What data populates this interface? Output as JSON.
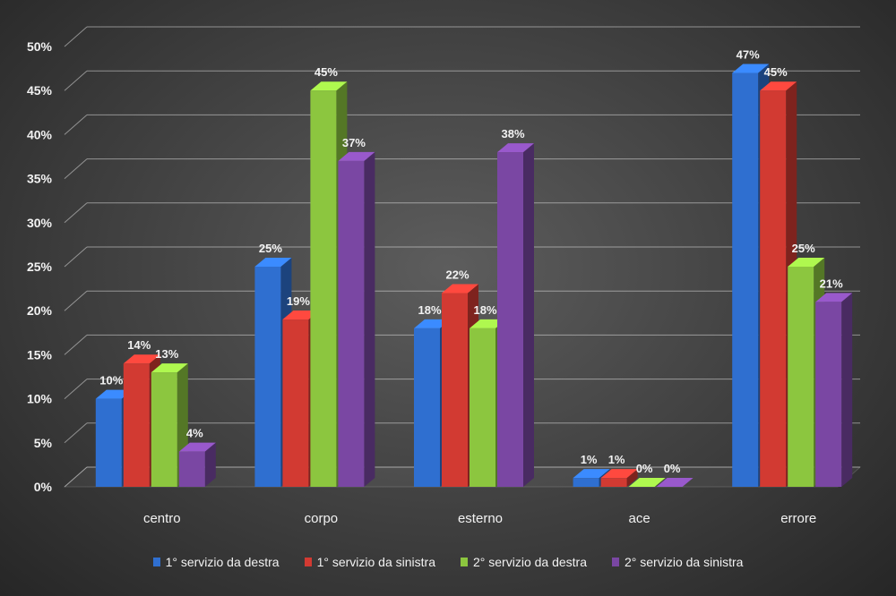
{
  "chart_data": {
    "type": "bar",
    "categories": [
      "centro",
      "corpo",
      "esterno",
      "ace",
      "errore"
    ],
    "series": [
      {
        "name": "1° servizio da destra",
        "color": "#2f6fd0",
        "values": [
          10,
          25,
          18,
          1,
          47
        ],
        "labels": [
          "10%",
          "25%",
          "18%",
          "1%",
          "47%"
        ]
      },
      {
        "name": "1° servizio da sinistra",
        "color": "#d23a32",
        "values": [
          14,
          19,
          22,
          1,
          45
        ],
        "labels": [
          "14%",
          "19%",
          "22%",
          "1%",
          "45%"
        ]
      },
      {
        "name": "2° servizio da destra",
        "color": "#8cc63f",
        "values": [
          13,
          45,
          18,
          0,
          25
        ],
        "labels": [
          "13%",
          "45%",
          "18%",
          "0%",
          "25%"
        ]
      },
      {
        "name": "2° servizio da sinistra",
        "color": "#7a47a3",
        "values": [
          4,
          37,
          38,
          0,
          21
        ],
        "labels": [
          "4%",
          "37%",
          "38%",
          "0%",
          "21%"
        ]
      }
    ],
    "ylim": [
      0,
      50
    ],
    "yticks": [
      "0%",
      "5%",
      "10%",
      "15%",
      "20%",
      "25%",
      "30%",
      "35%",
      "40%",
      "45%",
      "50%"
    ],
    "grid": true,
    "legend_position": "bottom",
    "projection": "3d"
  }
}
